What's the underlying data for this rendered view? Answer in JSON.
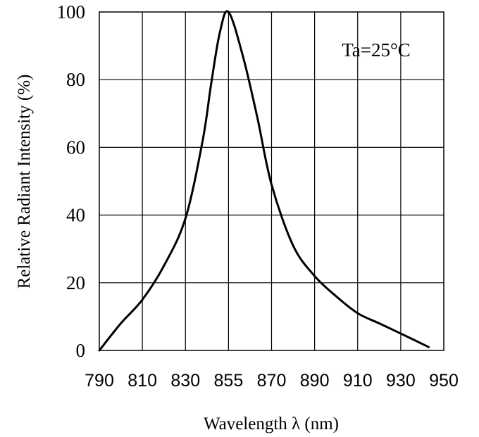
{
  "chart_data": {
    "type": "line",
    "title": "",
    "xlabel": "Wavelength  λ  (nm)",
    "ylabel": "Relative Radiant Intensity (%)",
    "annotation": "Ta=25°C",
    "x_tick_labels": [
      "790",
      "810",
      "830",
      "855",
      "870",
      "890",
      "910",
      "930",
      "950"
    ],
    "y_tick_labels": [
      "0",
      "20",
      "40",
      "60",
      "80",
      "100"
    ],
    "ylim": [
      0,
      100
    ],
    "grid": true,
    "series": [
      {
        "x": [
          "790",
          "800",
          "810",
          "820",
          "830",
          "840",
          "845",
          "850",
          "855",
          "860",
          "865",
          "870",
          "880",
          "890",
          "900",
          "910",
          "920",
          "930",
          "943"
        ],
        "values": [
          0,
          8,
          15,
          25,
          39,
          62,
          79,
          94,
          100,
          87,
          69,
          49,
          31,
          22,
          16,
          11,
          8,
          5,
          1
        ]
      }
    ]
  }
}
